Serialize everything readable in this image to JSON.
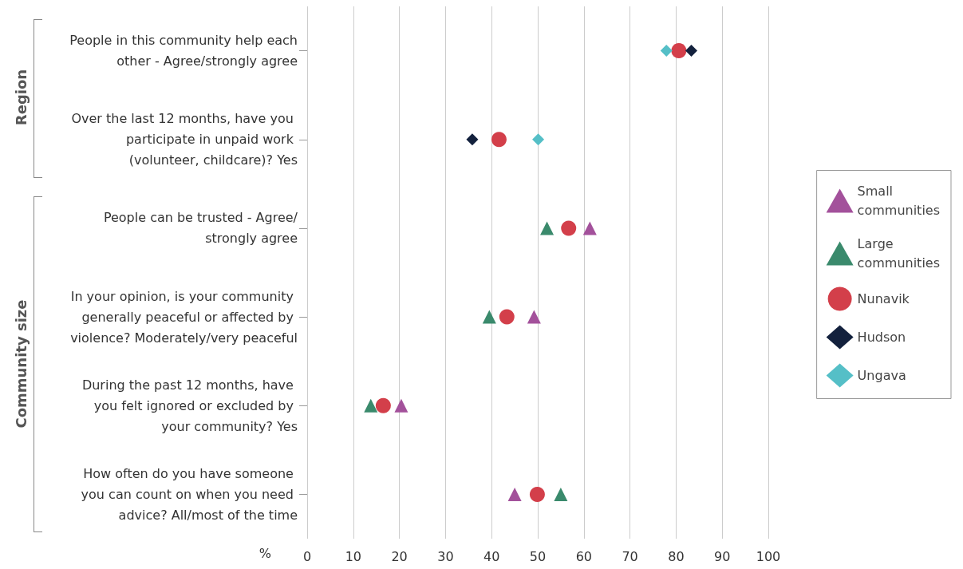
{
  "chart_data": {
    "type": "scatter",
    "orientation": "horizontal",
    "xlabel": "%",
    "categories": [
      "People in this community help each other - Agree/strongly agree",
      "Over the last 12 months, have you participate in unpaid work (volunteer, childcare)? Yes",
      "People can be trusted - Agree/strongly agree",
      "In your opinion, is your community generally peaceful or affected by violence? Moderately/very peaceful",
      "During the past 12 months, have you felt ignored or excluded by your community? Yes",
      "How often do you have someone you can count on when you need advice? All/most of the time"
    ],
    "series": [
      {
        "name": "Small communities",
        "color": "#a3519b",
        "marker": "triangle",
        "values": [
          null,
          null,
          61.3,
          49.2,
          20.4,
          45
        ]
      },
      {
        "name": "Large communities",
        "color": "#3a8a6c",
        "marker": "triangle",
        "values": [
          null,
          null,
          52,
          39.5,
          13.8,
          55
        ]
      },
      {
        "name": "Nunavik",
        "color": "#d33f4a",
        "marker": "circle",
        "values": [
          80.6,
          41.6,
          56.7,
          43.3,
          16.5,
          49.9
        ]
      },
      {
        "name": "Hudson",
        "color": "#13213d",
        "marker": "diamond",
        "values": [
          83.3,
          35.8,
          null,
          null,
          null,
          null
        ]
      },
      {
        "name": "Ungava",
        "color": "#55bfc7",
        "marker": "diamond",
        "values": [
          77.9,
          50.1,
          null,
          null,
          null,
          null
        ]
      }
    ],
    "xlim": [
      0,
      100
    ],
    "xticks": [
      0,
      10,
      20,
      30,
      40,
      50,
      60,
      70,
      80,
      90,
      100
    ],
    "grid": "x",
    "legend": "right",
    "annotations": [
      "Region",
      "Community size"
    ]
  }
}
